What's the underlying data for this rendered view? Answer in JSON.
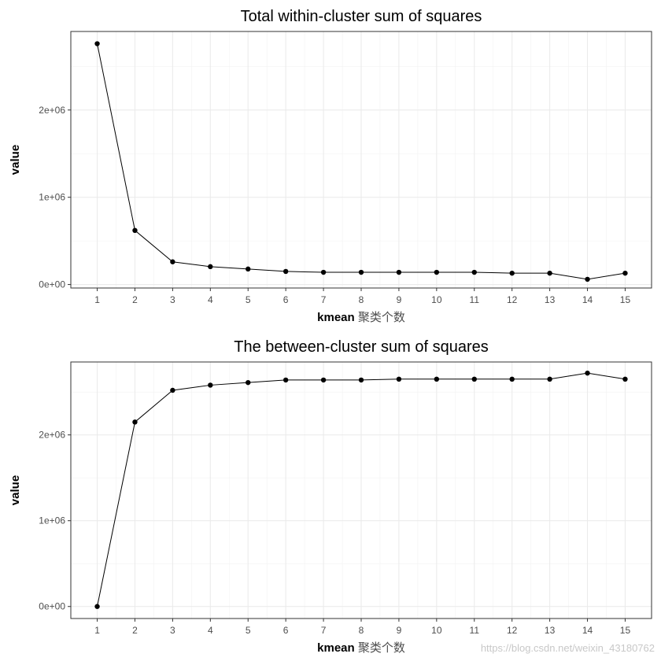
{
  "chart_data": [
    {
      "type": "line",
      "title": "Total within-cluster sum of squares",
      "xlabel": "kmean",
      "xlabel_suffix": "聚类个数",
      "ylabel": "value",
      "x": [
        1,
        2,
        3,
        4,
        5,
        6,
        7,
        8,
        9,
        10,
        11,
        12,
        13,
        14,
        15
      ],
      "y": [
        2760000,
        620000,
        260000,
        205000,
        178000,
        150000,
        140000,
        140000,
        140000,
        140000,
        140000,
        130000,
        130000,
        60000,
        130000
      ],
      "xticks": [
        "1",
        "2",
        "3",
        "4",
        "5",
        "6",
        "7",
        "8",
        "9",
        "10",
        "11",
        "12",
        "13",
        "14",
        "15"
      ],
      "yticks": [
        0,
        1000000,
        2000000
      ],
      "ytick_labels": [
        "0e+00",
        "1e+06",
        "2e+06"
      ],
      "ylim": [
        -40000,
        2900000
      ],
      "xlim": [
        0.3,
        15.7
      ],
      "grid": true,
      "markers": true
    },
    {
      "type": "line",
      "title": "The between-cluster sum of squares",
      "xlabel": "kmean",
      "xlabel_suffix": "聚类个数",
      "ylabel": "value",
      "x": [
        1,
        2,
        3,
        4,
        5,
        6,
        7,
        8,
        9,
        10,
        11,
        12,
        13,
        14,
        15
      ],
      "y": [
        0,
        2150000,
        2520000,
        2580000,
        2610000,
        2640000,
        2640000,
        2640000,
        2650000,
        2650000,
        2650000,
        2650000,
        2650000,
        2720000,
        2650000
      ],
      "xticks": [
        "1",
        "2",
        "3",
        "4",
        "5",
        "6",
        "7",
        "8",
        "9",
        "10",
        "11",
        "12",
        "13",
        "14",
        "15"
      ],
      "yticks": [
        0,
        1000000,
        2000000
      ],
      "ytick_labels": [
        "0e+00",
        "1e+06",
        "2e+06"
      ],
      "ylim": [
        -140000,
        2850000
      ],
      "xlim": [
        0.3,
        15.7
      ],
      "grid": true,
      "markers": true
    }
  ],
  "watermark": "https://blog.csdn.net/weixin_43180762"
}
